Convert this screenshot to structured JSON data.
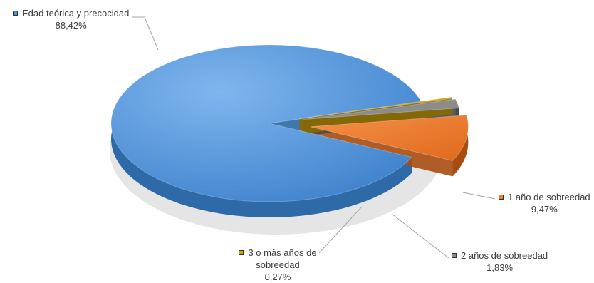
{
  "chart_data": {
    "type": "pie",
    "title": "",
    "categories": [
      "Edad teórica y precocidad",
      "1 año de sobreedad",
      "2 años de sobreedad",
      "3 o más años de sobreedad"
    ],
    "values": [
      88.42,
      9.47,
      1.83,
      0.27
    ],
    "value_labels": [
      "88,42%",
      "9,47%",
      "1,83%",
      "0,27%"
    ],
    "colors": [
      "#4a8fd6",
      "#ed7d31",
      "#8c8c8c",
      "#d4a000"
    ],
    "legend": "none",
    "exploded_slices": [
      "1 año de sobreedad",
      "2 años de sobreedad",
      "3 o más años de sobreedad"
    ],
    "style": "3d"
  }
}
